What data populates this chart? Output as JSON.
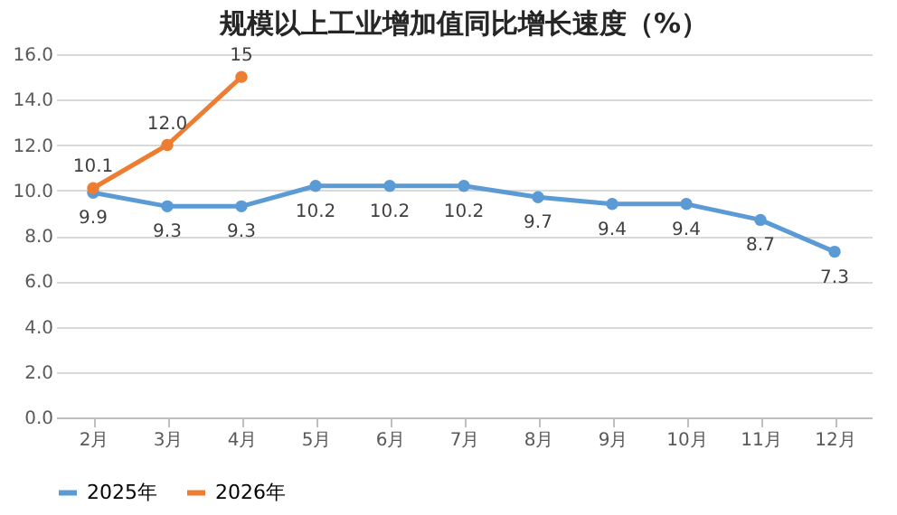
{
  "chart_data": {
    "type": "line",
    "title": "规模以上工业增加值同比增长速度（%）",
    "categories": [
      "2月",
      "3月",
      "4月",
      "5月",
      "6月",
      "7月",
      "8月",
      "9月",
      "10月",
      "11月",
      "12月"
    ],
    "series": [
      {
        "name": "2025年",
        "color": "#5b9bd5",
        "values": [
          9.9,
          9.3,
          9.3,
          10.2,
          10.2,
          10.2,
          9.7,
          9.4,
          9.4,
          8.7,
          7.3
        ],
        "value_labels": [
          "9.9",
          "9.3",
          "9.3",
          "10.2",
          "10.2",
          "10.2",
          "9.7",
          "9.4",
          "9.4",
          "8.7",
          "7.3"
        ]
      },
      {
        "name": "2026年",
        "color": "#ed7d31",
        "values": [
          10.1,
          12.0,
          15,
          null,
          null,
          null,
          null,
          null,
          null,
          null,
          null
        ],
        "value_labels": [
          "10.1",
          "12.0",
          "15",
          null,
          null,
          null,
          null,
          null,
          null,
          null,
          null
        ]
      }
    ],
    "ylim": [
      0,
      16
    ],
    "yticks": [
      {
        "value": 0,
        "label": "0.0"
      },
      {
        "value": 2,
        "label": "2.0"
      },
      {
        "value": 4,
        "label": "4.0"
      },
      {
        "value": 6,
        "label": "6.0"
      },
      {
        "value": 8,
        "label": "8.0"
      },
      {
        "value": 10,
        "label": "10.0"
      },
      {
        "value": 12,
        "label": "12.0"
      },
      {
        "value": 14,
        "label": "14.0"
      },
      {
        "value": 16,
        "label": "16.0"
      }
    ],
    "grid": "y",
    "legend": "bottom",
    "marker": "circle",
    "line_style": "solid"
  }
}
